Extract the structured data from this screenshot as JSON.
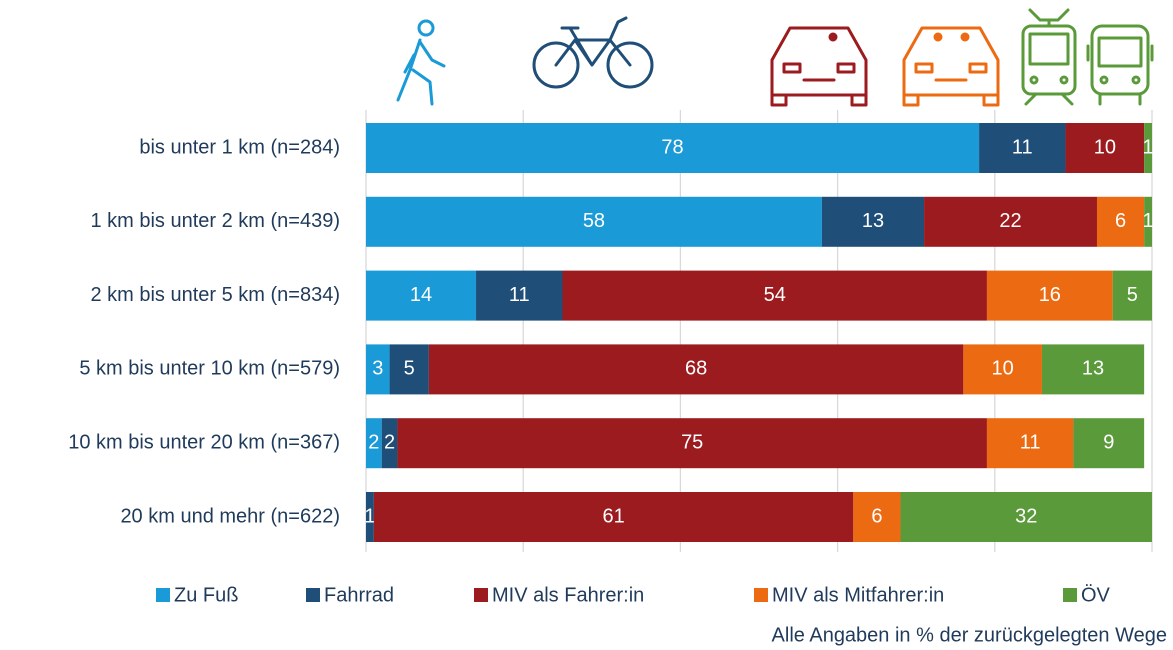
{
  "chart_data": {
    "type": "stacked-bar-horizontal",
    "categories": [
      "bis unter 1 km (n=284)",
      "1 km bis unter 2 km (n=439)",
      "2 km bis unter 5 km (n=834)",
      "5 km bis unter 10 km (n=579)",
      "10 km bis unter 20 km (n=367)",
      "20 km und mehr (n=622)"
    ],
    "series": [
      {
        "name": "Zu Fuß",
        "color": "#1a9ad6",
        "values": [
          78,
          58,
          14,
          3,
          2,
          null
        ]
      },
      {
        "name": "Fahrrad",
        "color": "#1f4e79",
        "values": [
          11,
          13,
          11,
          5,
          2,
          1
        ]
      },
      {
        "name": "MIV als Fahrer:in",
        "color": "#9b1b1e",
        "values": [
          10,
          22,
          54,
          68,
          75,
          61
        ]
      },
      {
        "name": "MIV als Mitfahrer:in",
        "color": "#ec6b12",
        "values": [
          null,
          6,
          16,
          10,
          11,
          6
        ]
      },
      {
        "name": "ÖV",
        "color": "#5a9a3a",
        "values": [
          1,
          1,
          5,
          13,
          9,
          32
        ]
      }
    ],
    "xlim": [
      0,
      100
    ],
    "xticks": [
      0,
      20,
      40,
      60,
      80,
      100
    ],
    "grid": true,
    "note": "Alle Angaben in % der zurückgelegten Wege"
  }
}
